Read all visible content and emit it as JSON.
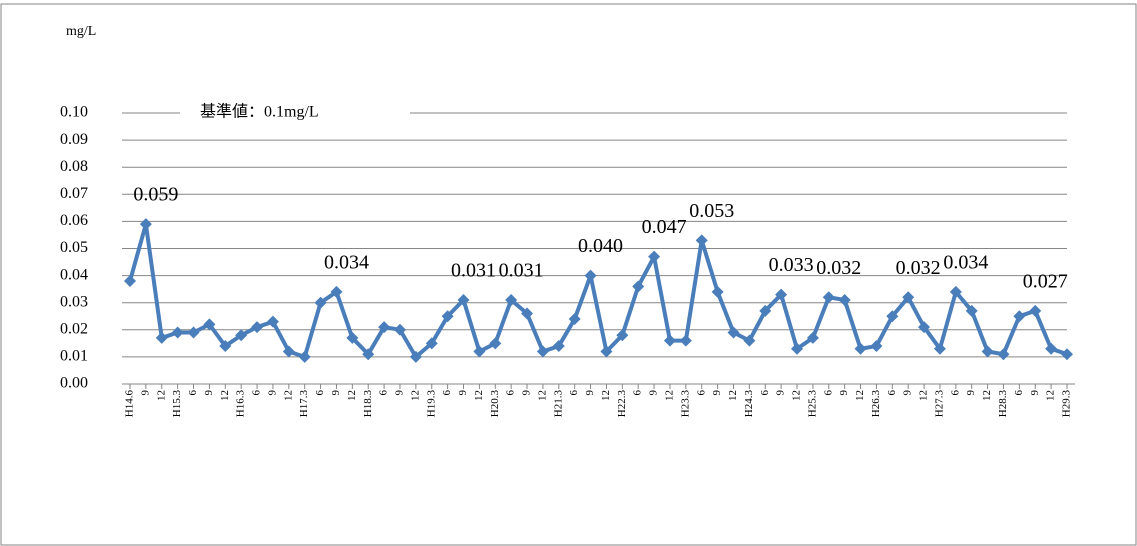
{
  "chart_data": {
    "type": "line",
    "unit_label": "mg/L",
    "categories": [
      "H14.6",
      "9",
      "12",
      "H15.3",
      "6",
      "9",
      "12",
      "H16.3",
      "6",
      "9",
      "12",
      "H17.3",
      "6",
      "9",
      "12",
      "H18.3",
      "6",
      "9",
      "12",
      "H19.3",
      "6",
      "9",
      "12",
      "H20.3",
      "6",
      "9",
      "12",
      "H21.3",
      "6",
      "9",
      "12",
      "H22.3",
      "6",
      "9",
      "12",
      "H23.3",
      "6",
      "9",
      "12",
      "H24.3",
      "6",
      "9",
      "12",
      "H25.3",
      "6",
      "9",
      "12",
      "H26.3",
      "6",
      "9",
      "12",
      "H27.3",
      "6",
      "9",
      "12",
      "H28.3",
      "6",
      "9",
      "12",
      "H29.3"
    ],
    "values": [
      0.038,
      0.059,
      0.017,
      0.019,
      0.019,
      0.022,
      0.014,
      0.018,
      0.021,
      0.023,
      0.012,
      0.01,
      0.03,
      0.034,
      0.017,
      0.011,
      0.021,
      0.02,
      0.01,
      0.015,
      0.025,
      0.031,
      0.012,
      0.015,
      0.031,
      0.026,
      0.012,
      0.014,
      0.024,
      0.04,
      0.012,
      0.018,
      0.036,
      0.047,
      0.016,
      0.016,
      0.053,
      0.034,
      0.019,
      0.016,
      0.027,
      0.033,
      0.013,
      0.017,
      0.032,
      0.031,
      0.013,
      0.014,
      0.025,
      0.032,
      0.021,
      0.013,
      0.034,
      0.027,
      0.012,
      0.011,
      0.025,
      0.027,
      0.013,
      0.011
    ],
    "value_labels": [
      null,
      "0.059",
      null,
      null,
      null,
      null,
      null,
      null,
      null,
      null,
      null,
      null,
      null,
      "0.034",
      null,
      null,
      null,
      null,
      null,
      null,
      null,
      "0.031",
      null,
      null,
      "0.031",
      null,
      null,
      null,
      null,
      "0.040",
      null,
      null,
      null,
      "0.047",
      null,
      null,
      "0.053",
      null,
      null,
      null,
      null,
      "0.033",
      null,
      null,
      "0.032",
      null,
      null,
      null,
      null,
      "0.032",
      null,
      null,
      "0.034",
      null,
      null,
      null,
      null,
      "0.027",
      null,
      null
    ],
    "color": "#4a7ebb",
    "ylim": [
      0,
      0.1
    ],
    "yticks": [
      {
        "value": 0,
        "label": "0.00"
      },
      0.01,
      0.02,
      0.03,
      0.04,
      0.05,
      0.06,
      0.07,
      0.08,
      0.09,
      {
        "value": 0.1,
        "label": "0.10"
      }
    ],
    "grid": true,
    "reference_line": {
      "value": 0.1,
      "label": "基準値：0.1mg/L"
    }
  }
}
